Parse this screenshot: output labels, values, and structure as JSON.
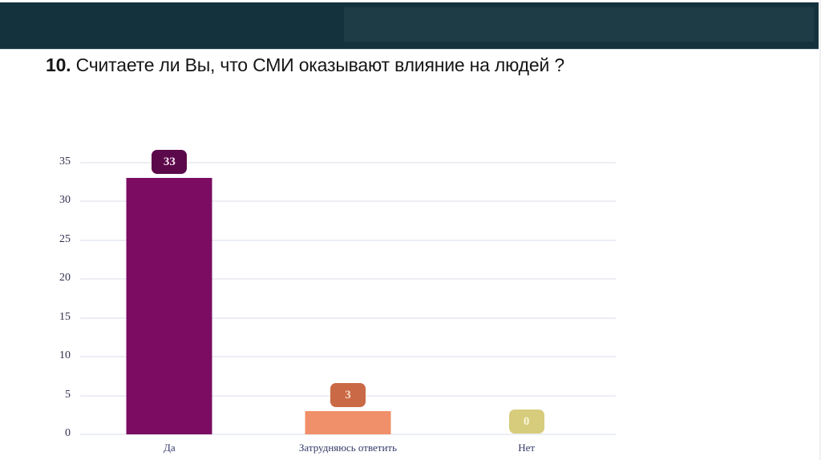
{
  "header": {
    "band_color": "#14323d",
    "panel_color": "#1e3c46"
  },
  "slide": {
    "title_number": "10.",
    "title_text": "Считаете ли Вы, что СМИ оказывают влияние на людей ?"
  },
  "chart_data": {
    "type": "bar",
    "title": "10. Считаете ли Вы, что СМИ оказывают влияние на людей ?",
    "categories": [
      "Да",
      "Затрудняюсь ответить",
      "Нет"
    ],
    "values": [
      33,
      3,
      0
    ],
    "bar_colors": [
      "#7b0c62",
      "#f0906a",
      "#d6cc7c"
    ],
    "badge_colors": [
      "#5b094a",
      "#ca6946",
      "#d6cc7c"
    ],
    "badge_text_colors": [
      "#f6e3f0",
      "#f8dcca",
      "#f9f6da"
    ],
    "xlabel": "",
    "ylabel": "",
    "ylim": [
      0,
      35
    ],
    "yticks": [
      0,
      5,
      10,
      15,
      20,
      25,
      30,
      35
    ],
    "grid": true,
    "gridline_color": "#eceef4",
    "ytick_color": "#31314f",
    "category_label_color": "#333a68",
    "legend_position": "none"
  }
}
